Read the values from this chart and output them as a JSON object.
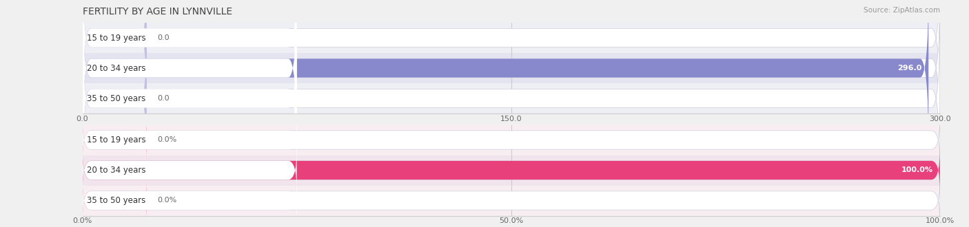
{
  "title": "FERTILITY BY AGE IN LYNNVILLE",
  "source": "Source: ZipAtlas.com",
  "top_chart": {
    "categories": [
      "15 to 19 years",
      "20 to 34 years",
      "35 to 50 years"
    ],
    "values": [
      0.0,
      296.0,
      0.0
    ],
    "max_val": 300.0,
    "xticks": [
      0.0,
      150.0,
      300.0
    ],
    "xtick_labels": [
      "0.0",
      "150.0",
      "300.0"
    ],
    "bar_color_full": "#8888cc",
    "bar_color_empty": "#c0c0e0",
    "row_bg_odd": "#eeeef5",
    "row_bg_even": "#e4e4f0",
    "bar_bg": "#f0f0f8"
  },
  "bottom_chart": {
    "categories": [
      "15 to 19 years",
      "20 to 34 years",
      "35 to 50 years"
    ],
    "values": [
      0.0,
      100.0,
      0.0
    ],
    "max_val": 100.0,
    "xticks": [
      0.0,
      50.0,
      100.0
    ],
    "xtick_labels": [
      "0.0%",
      "50.0%",
      "100.0%"
    ],
    "bar_color_full": "#e8407a",
    "bar_color_empty": "#f4a0b8",
    "row_bg_odd": "#f8eef2",
    "row_bg_even": "#f2e4ec",
    "bar_bg": "#f8f0f4"
  },
  "background_color": "#f0f0f0",
  "title_fontsize": 10,
  "label_fontsize": 8.5,
  "value_fontsize": 8,
  "tick_fontsize": 8
}
